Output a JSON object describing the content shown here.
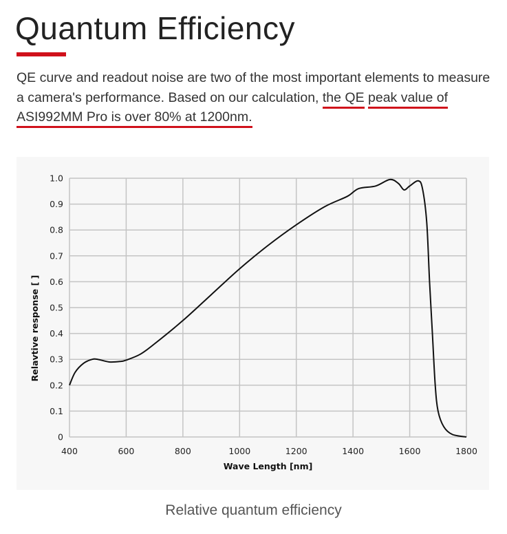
{
  "header": {
    "title": "Quantum Efficiency",
    "accent_color": "#d0111b"
  },
  "description": {
    "part1": "QE curve and readout noise are two of the most important elements to measure a camera's performance. Based on our calculation, ",
    "highlight1": "the QE",
    "space": " ",
    "highlight2": "peak value of ASI992MM Pro is over 80% at 1200nm."
  },
  "caption": "Relative quantum efficiency",
  "chart_data": {
    "type": "line",
    "title": "",
    "xlabel": "Wave Length [nm]",
    "ylabel": "Relavtive response [ ]",
    "xlim": [
      400,
      1800
    ],
    "ylim": [
      0,
      1.0
    ],
    "grid": true,
    "x_ticks": [
      400,
      600,
      800,
      1000,
      1200,
      1400,
      1600,
      1800
    ],
    "x_tick_labels": [
      "400",
      "600",
      "800",
      "1000",
      "1200",
      "1400",
      "1600",
      "1800"
    ],
    "y_ticks": [
      0,
      0.1,
      0.2,
      0.3,
      0.4,
      0.5,
      0.6,
      0.7,
      0.8,
      0.9,
      1.0
    ],
    "y_tick_labels": [
      "0",
      "0.1",
      "0.2",
      "0.3",
      "0.4",
      "0.5",
      "0.6",
      "0.7",
      "0.8",
      "0.9",
      "1.0"
    ],
    "series": [
      {
        "name": "Relative response",
        "color": "#111111",
        "x": [
          400,
          420,
          450,
          480,
          500,
          540,
          580,
          600,
          650,
          700,
          800,
          900,
          1000,
          1100,
          1200,
          1300,
          1380,
          1420,
          1480,
          1530,
          1560,
          1580,
          1600,
          1630,
          1645,
          1660,
          1670,
          1680,
          1690,
          1700,
          1720,
          1750,
          1800
        ],
        "y": [
          0.2,
          0.25,
          0.285,
          0.3,
          0.3,
          0.29,
          0.292,
          0.297,
          0.32,
          0.36,
          0.45,
          0.55,
          0.65,
          0.74,
          0.82,
          0.89,
          0.93,
          0.96,
          0.97,
          0.995,
          0.98,
          0.955,
          0.97,
          0.99,
          0.96,
          0.83,
          0.6,
          0.4,
          0.2,
          0.1,
          0.04,
          0.01,
          0.0
        ]
      }
    ]
  }
}
